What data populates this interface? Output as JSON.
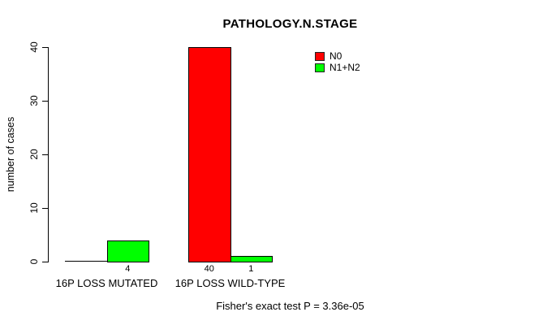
{
  "title": "PATHOLOGY.N.STAGE",
  "footer": "Fisher's exact test P = 3.36e-05",
  "colors": {
    "n0": "#ff0000",
    "n1n2": "#00ff00",
    "axis": "#000000",
    "background": "#ffffff"
  },
  "chart_data": {
    "type": "bar",
    "title": "PATHOLOGY.N.STAGE",
    "xlabel": "",
    "ylabel": "number of cases",
    "categories": [
      "16P LOSS MUTATED",
      "16P LOSS WILD-TYPE"
    ],
    "series": [
      {
        "name": "N0",
        "color": "#ff0000",
        "values": [
          0,
          40
        ]
      },
      {
        "name": "N1+N2",
        "color": "#00ff00",
        "values": [
          4,
          1
        ]
      }
    ],
    "bar_value_labels_shown": [
      "4",
      "40",
      "1"
    ],
    "show_zero_value_labels": false,
    "yticks": [
      0,
      10,
      20,
      30,
      40
    ],
    "ylim": [
      0,
      40
    ],
    "grid": false,
    "legend_position": "top-right-inside",
    "annotation": "Fisher's exact test P = 3.36e-05"
  }
}
